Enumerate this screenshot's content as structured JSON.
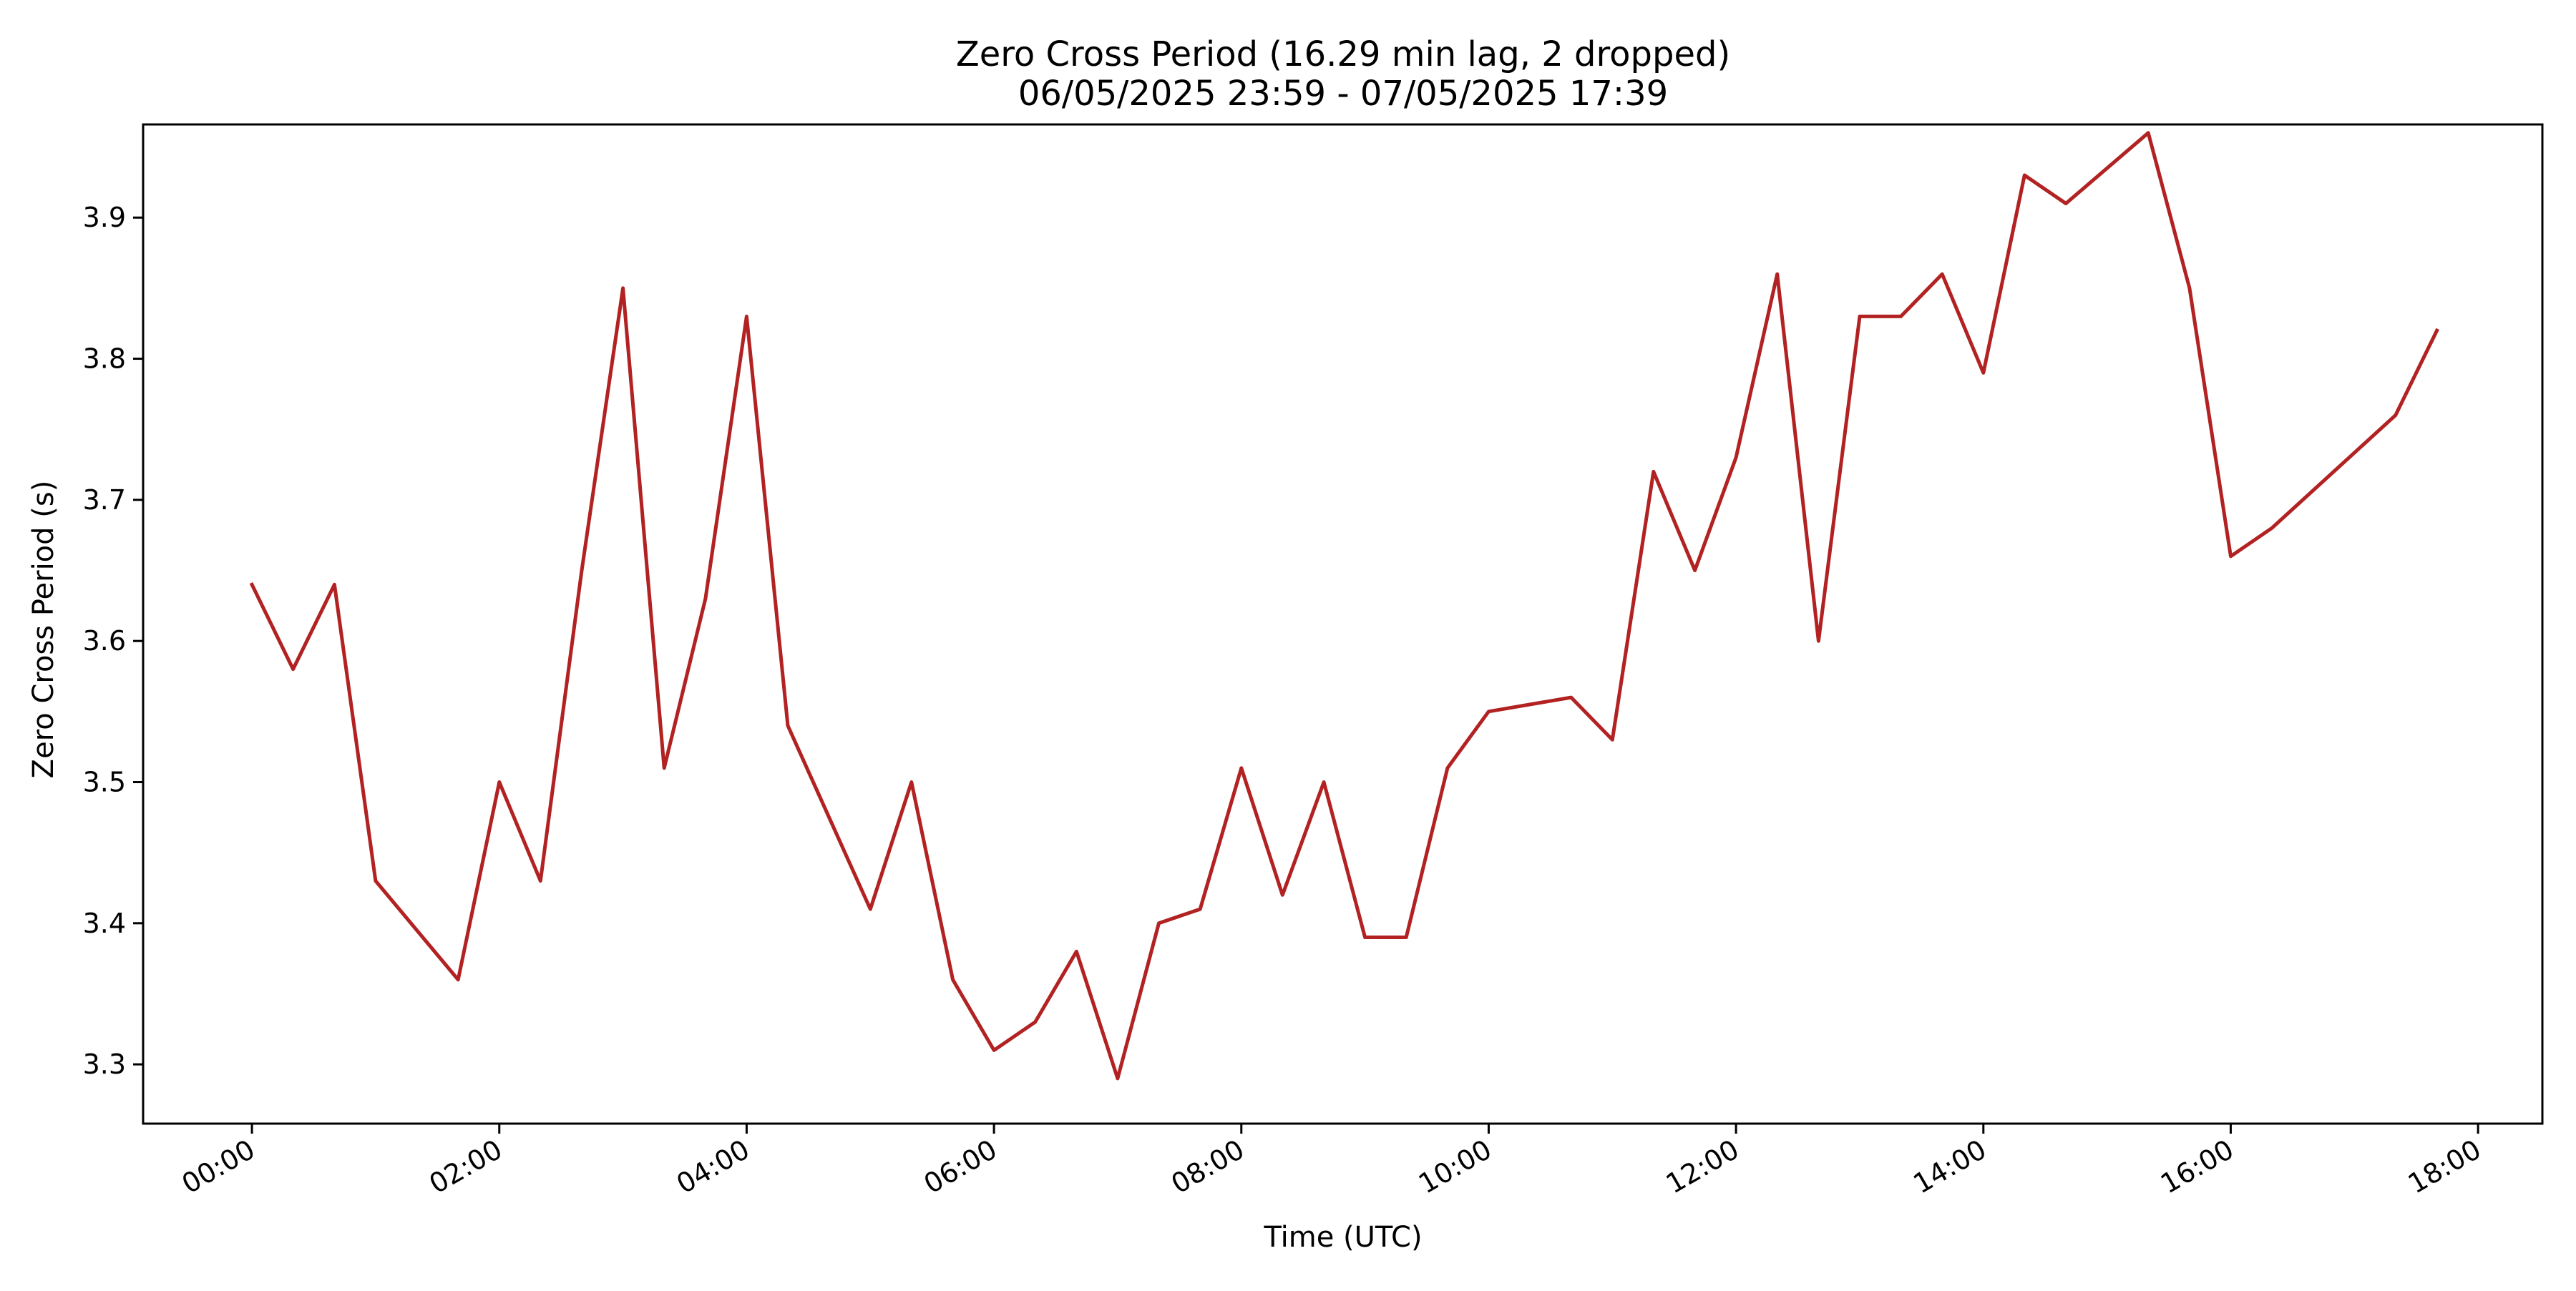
{
  "chart_data": {
    "type": "line",
    "title": "Zero Cross Period (16.29 min lag, 2 dropped)",
    "subtitle": "06/05/2025 23:59 - 07/05/2025 17:39",
    "xlabel": "Time (UTC)",
    "ylabel": "Zero Cross Period (s)",
    "x_unit": "hours (UTC, 07/05/2025)",
    "xlim": [
      -0.88,
      18.52
    ],
    "ylim": [
      3.258,
      3.966
    ],
    "xticks": [
      0,
      2,
      4,
      6,
      8,
      10,
      12,
      14,
      16,
      18
    ],
    "xtick_labels": [
      "00:00",
      "02:00",
      "04:00",
      "06:00",
      "08:00",
      "10:00",
      "12:00",
      "14:00",
      "16:00",
      "18:00"
    ],
    "yticks": [
      3.3,
      3.4,
      3.5,
      3.6,
      3.7,
      3.8,
      3.9
    ],
    "ytick_labels": [
      "3.3",
      "3.4",
      "3.5",
      "3.6",
      "3.7",
      "3.8",
      "3.9"
    ],
    "grid": false,
    "legend": "none",
    "series": [
      {
        "color": "#b22222",
        "x": [
          0,
          0.333,
          0.667,
          1,
          1.667,
          2,
          2.333,
          2.667,
          3,
          3.333,
          3.667,
          4,
          4.333,
          5,
          5.333,
          5.667,
          6,
          6.333,
          6.667,
          7,
          7.333,
          7.667,
          8,
          8.333,
          8.667,
          9,
          9.333,
          9.667,
          10,
          10.667,
          11,
          11.333,
          11.667,
          12,
          12.333,
          12.667,
          13,
          13.333,
          13.667,
          14,
          14.333,
          14.667,
          15.333,
          15.667,
          16,
          16.333,
          17.333,
          17.667
        ],
        "y": [
          3.64,
          3.58,
          3.64,
          3.43,
          3.36,
          3.5,
          3.43,
          3.65,
          3.85,
          3.51,
          3.63,
          3.83,
          3.54,
          3.41,
          3.5,
          3.36,
          3.31,
          3.33,
          3.38,
          3.29,
          3.4,
          3.41,
          3.51,
          3.42,
          3.5,
          3.39,
          3.39,
          3.51,
          3.55,
          3.56,
          3.53,
          3.72,
          3.65,
          3.73,
          3.86,
          3.6,
          3.83,
          3.83,
          3.86,
          3.79,
          3.93,
          3.91,
          3.96,
          3.85,
          3.66,
          3.68,
          3.76,
          3.82
        ]
      }
    ]
  }
}
